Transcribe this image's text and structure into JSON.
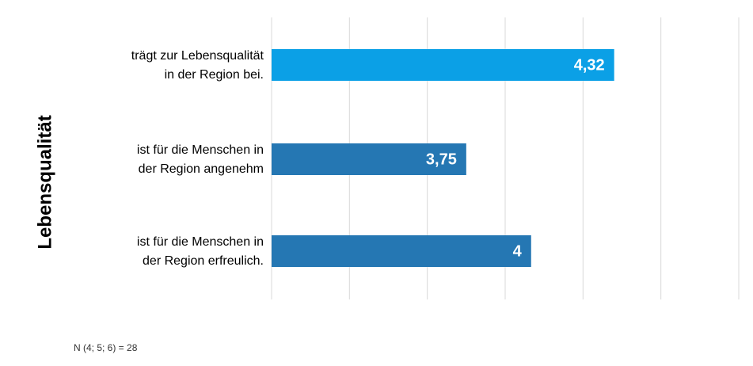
{
  "chart_data": {
    "type": "bar",
    "orientation": "horizontal",
    "axis_label": "Lebensqualität",
    "categories": [
      [
        "trägt zur Lebensqualität",
        "in der Region bei."
      ],
      [
        "ist für die Menschen in",
        "der Region angenehm"
      ],
      [
        "ist für die Menschen in",
        "der Region erfreulich."
      ]
    ],
    "values": [
      4.32,
      3.75,
      4
    ],
    "value_labels": [
      "4,32",
      "3,75",
      "4"
    ],
    "colors": [
      "#0ba0e6",
      "#2577b3",
      "#2577b3"
    ],
    "xlim": [
      3,
      4.8
    ],
    "xticks": [
      3,
      3.3,
      3.6,
      3.9,
      4.2,
      4.5,
      4.8
    ],
    "grid": true,
    "note": "N (4; 5; 6) = 28"
  }
}
